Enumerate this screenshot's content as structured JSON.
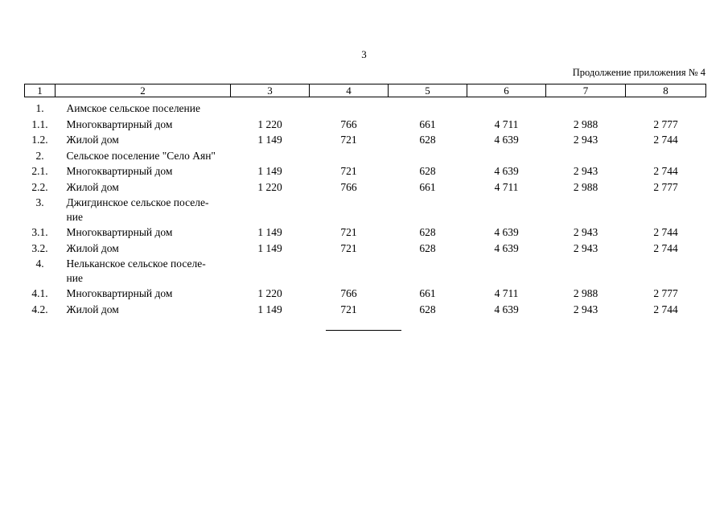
{
  "page": {
    "number": "3",
    "continuation_note": "Продолжение приложения № 4"
  },
  "table": {
    "header": [
      "1",
      "2",
      "3",
      "4",
      "5",
      "6",
      "7",
      "8"
    ],
    "rows": [
      {
        "num": "1.",
        "name": "Аимское сельское поселение",
        "values": [
          "",
          "",
          "",
          "",
          "",
          ""
        ]
      },
      {
        "num": "1.1.",
        "name": "Многоквартирный дом",
        "values": [
          "1 220",
          "766",
          "661",
          "4 711",
          "2 988",
          "2 777"
        ]
      },
      {
        "num": "1.2.",
        "name": "Жилой дом",
        "values": [
          "1 149",
          "721",
          "628",
          "4 639",
          "2 943",
          "2 744"
        ]
      },
      {
        "num": "2.",
        "name": "Сельское поселение \"Село Аян\"",
        "values": [
          "",
          "",
          "",
          "",
          "",
          ""
        ]
      },
      {
        "num": "2.1.",
        "name": "Многоквартирный дом",
        "values": [
          "1 149",
          "721",
          "628",
          "4 639",
          "2 943",
          "2 744"
        ]
      },
      {
        "num": "2.2.",
        "name": "Жилой дом",
        "values": [
          "1 220",
          "766",
          "661",
          "4 711",
          "2 988",
          "2 777"
        ]
      },
      {
        "num": "3.",
        "name": "Джигдинское сельское поселе-\nние",
        "values": [
          "",
          "",
          "",
          "",
          "",
          ""
        ]
      },
      {
        "num": "3.1.",
        "name": "Многоквартирный дом",
        "values": [
          "1 149",
          "721",
          "628",
          "4 639",
          "2 943",
          "2 744"
        ]
      },
      {
        "num": "3.2.",
        "name": "Жилой дом",
        "values": [
          "1 149",
          "721",
          "628",
          "4 639",
          "2 943",
          "2 744"
        ]
      },
      {
        "num": "4.",
        "name": "Нельканское сельское поселе-\nние",
        "values": [
          "",
          "",
          "",
          "",
          "",
          ""
        ]
      },
      {
        "num": "4.1.",
        "name": "Многоквартирный дом",
        "values": [
          "1 220",
          "766",
          "661",
          "4 711",
          "2 988",
          "2 777"
        ]
      },
      {
        "num": "4.2.",
        "name": "Жилой дом",
        "values": [
          "1 149",
          "721",
          "628",
          "4 639",
          "2 943",
          "2 744"
        ]
      }
    ]
  }
}
